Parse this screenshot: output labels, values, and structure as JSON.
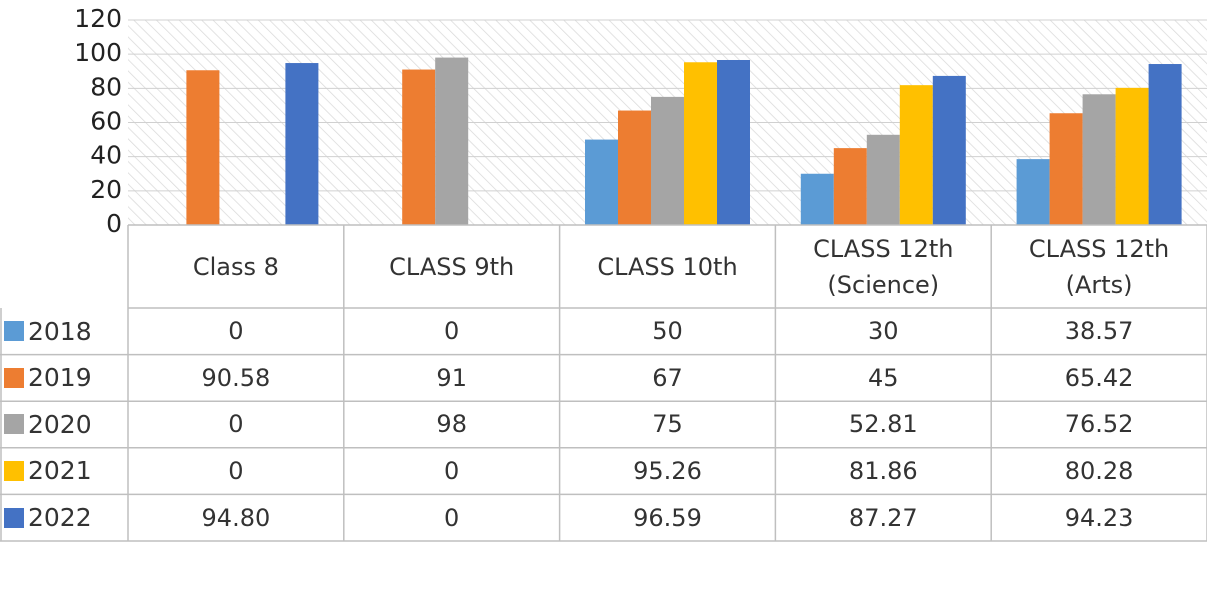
{
  "chart_data": {
    "type": "bar",
    "categories": [
      "Class 8",
      "CLASS 9th",
      "CLASS 10th",
      "CLASS 12th (Science)",
      "CLASS 12th (Arts)"
    ],
    "series": [
      {
        "name": "2018",
        "color": "#5b9bd5",
        "values": [
          0,
          0,
          50,
          30,
          38.57
        ]
      },
      {
        "name": "2019",
        "color": "#ed7d31",
        "values": [
          90.58,
          91,
          67,
          45,
          65.42
        ]
      },
      {
        "name": "2020",
        "color": "#a5a5a5",
        "values": [
          0,
          98,
          75,
          52.81,
          76.52
        ]
      },
      {
        "name": "2021",
        "color": "#ffc000",
        "values": [
          0,
          0,
          95.26,
          81.86,
          80.28
        ]
      },
      {
        "name": "2022",
        "color": "#4472c4",
        "values": [
          94.8,
          0,
          96.59,
          87.27,
          94.23
        ],
        "value_labels": [
          "94.80",
          "0",
          "96.59",
          "87.27",
          "94.23"
        ]
      }
    ],
    "ylim": [
      0,
      120
    ],
    "yticks": [
      0,
      20,
      40,
      60,
      80,
      100,
      120
    ],
    "grid": true,
    "data_table": true
  }
}
